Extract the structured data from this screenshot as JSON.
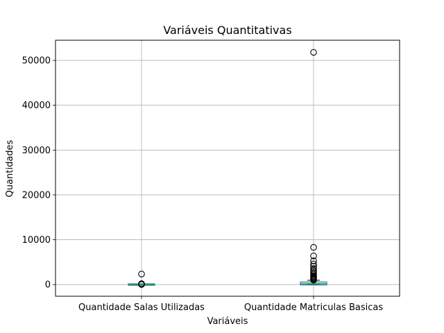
{
  "chart_data": {
    "type": "box",
    "title": "Variáveis Quantitativas",
    "xlabel": "Variáveis",
    "ylabel": "Quantidades",
    "ylim": [
      -2600,
      54500
    ],
    "yticks": [
      0,
      10000,
      20000,
      30000,
      40000,
      50000
    ],
    "ytick_labels": [
      "0",
      "10000",
      "20000",
      "30000",
      "40000",
      "50000"
    ],
    "grid": true,
    "box_color": "#1f77b4",
    "median_color": "#2ca02c",
    "flier_color": "#000000",
    "categories": [
      "Quantidade Salas Utilizadas",
      "Quantidade Matriculas Basicas"
    ],
    "boxes": [
      {
        "name": "Quantidade Salas Utilizadas",
        "whisker_low": 1,
        "q1": 3,
        "median": 5,
        "q3": 10,
        "whisker_high": 20,
        "fliers": [
          25,
          40,
          60,
          90,
          120,
          200,
          2350
        ]
      },
      {
        "name": "Quantidade Matriculas Basicas",
        "whisker_low": 0,
        "q1": 80,
        "median": 200,
        "q3": 420,
        "whisker_high": 950,
        "fliers": [
          1000,
          1200,
          1400,
          1600,
          1800,
          2000,
          2300,
          2600,
          2900,
          3200,
          3600,
          4100,
          4600,
          5300,
          6400,
          8300,
          51800
        ]
      }
    ]
  }
}
